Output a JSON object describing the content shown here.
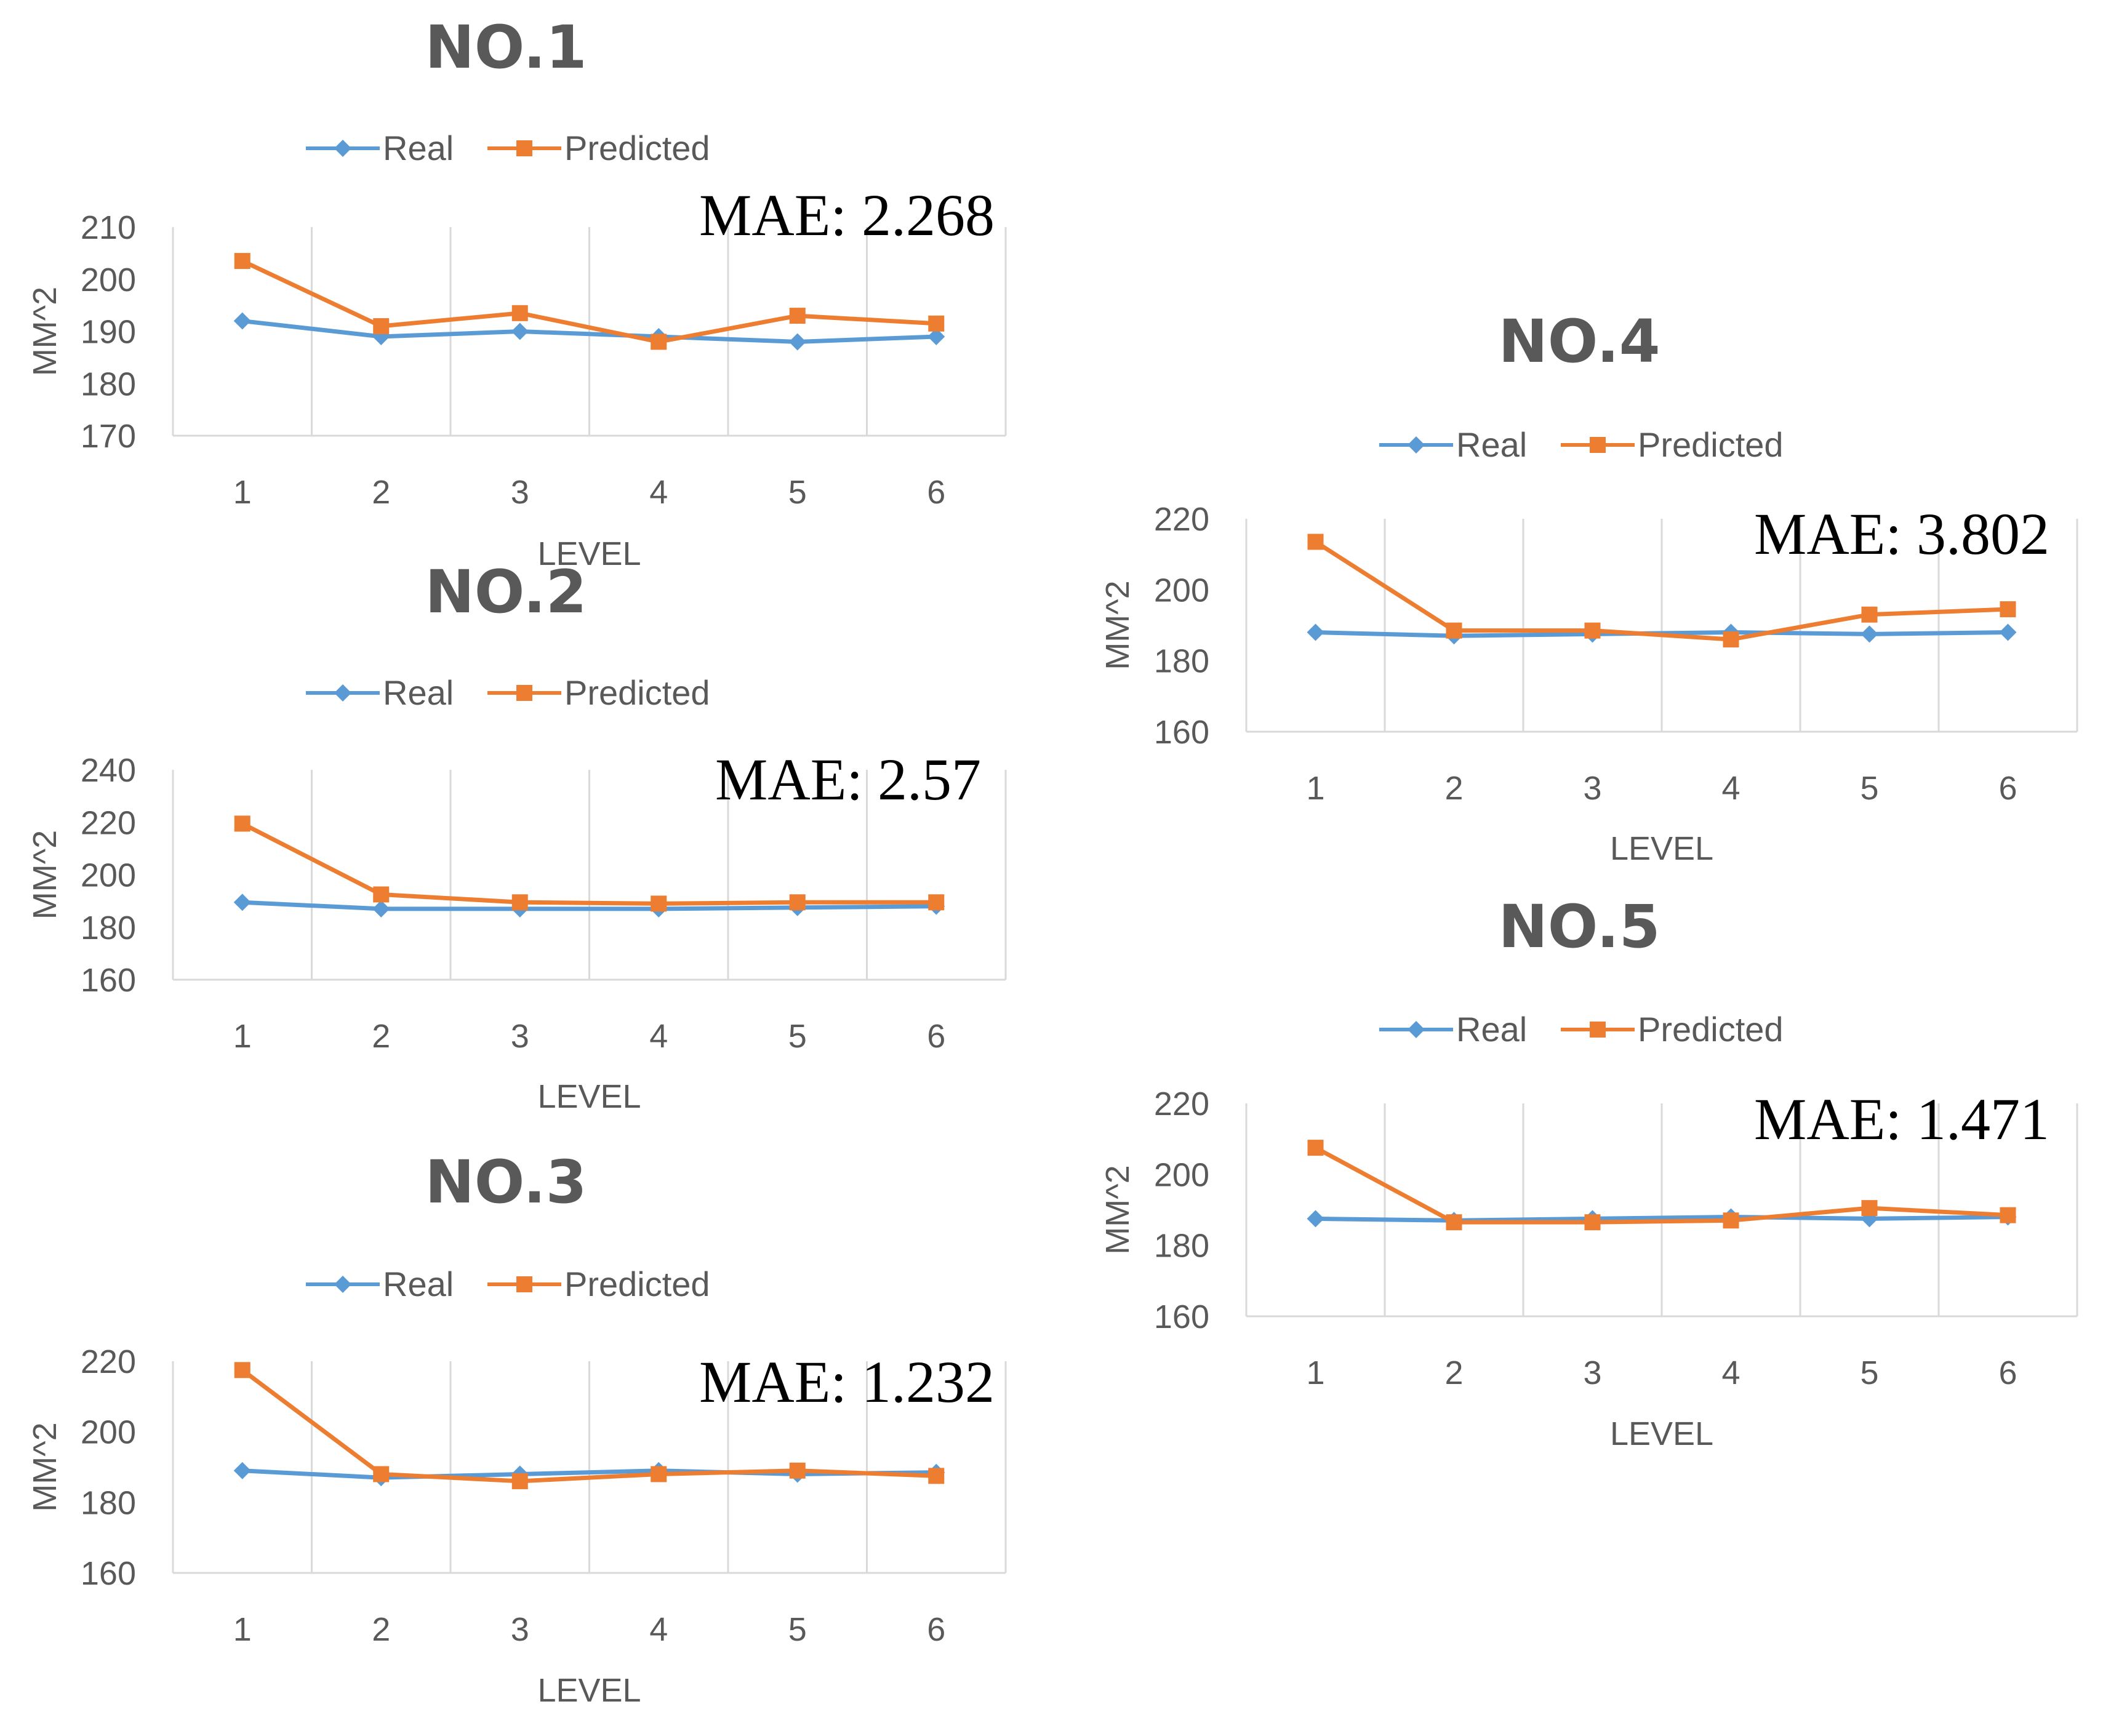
{
  "chart_data": [
    {
      "type": "line",
      "title": "NO.1",
      "categories": [
        "1",
        "2",
        "3",
        "4",
        "5",
        "6"
      ],
      "series": [
        {
          "name": "Real",
          "values": [
            192,
            189,
            190,
            189,
            188,
            189
          ],
          "color": "#5B9BD5",
          "marker": "diamond"
        },
        {
          "name": "Predicted",
          "values": [
            203.5,
            191,
            193.5,
            188,
            193,
            191.5
          ],
          "color": "#ED7D31",
          "marker": "square"
        }
      ],
      "xlabel": "LEVEL",
      "ylabel": "MM^2",
      "ylim": [
        170,
        210
      ],
      "yticks": [
        "210",
        "200",
        "190",
        "180",
        "170"
      ],
      "annotation": "MAE: 2.268",
      "legend": "top",
      "grid": "vertical"
    },
    {
      "type": "line",
      "title": "NO.2",
      "categories": [
        "1",
        "2",
        "3",
        "4",
        "5",
        "6"
      ],
      "series": [
        {
          "name": "Real",
          "values": [
            189.5,
            187,
            187,
            187,
            187.5,
            188
          ],
          "color": "#5B9BD5",
          "marker": "diamond"
        },
        {
          "name": "Predicted",
          "values": [
            219.5,
            192.5,
            189.5,
            189,
            189.5,
            189.5
          ],
          "color": "#ED7D31",
          "marker": "square"
        }
      ],
      "xlabel": "LEVEL",
      "ylabel": "MM^2",
      "ylim": [
        160,
        240
      ],
      "yticks": [
        "240",
        "220",
        "200",
        "180",
        "160"
      ],
      "annotation": "MAE: 2.57",
      "legend": "top",
      "grid": "vertical"
    },
    {
      "type": "line",
      "title": "NO.3",
      "categories": [
        "1",
        "2",
        "3",
        "4",
        "5",
        "6"
      ],
      "series": [
        {
          "name": "Real",
          "values": [
            189,
            187,
            188,
            189,
            188,
            188.5
          ],
          "color": "#5B9BD5",
          "marker": "diamond"
        },
        {
          "name": "Predicted",
          "values": [
            217.5,
            188,
            186,
            188,
            189,
            187.5
          ],
          "color": "#ED7D31",
          "marker": "square"
        }
      ],
      "xlabel": "LEVEL",
      "ylabel": "MM^2",
      "ylim": [
        160,
        220
      ],
      "yticks": [
        "220",
        "200",
        "180",
        "160"
      ],
      "annotation": "MAE: 1.232",
      "legend": "top",
      "grid": "vertical"
    },
    {
      "type": "line",
      "title": "NO.4",
      "categories": [
        "1",
        "2",
        "3",
        "4",
        "5",
        "6"
      ],
      "series": [
        {
          "name": "Real",
          "values": [
            188,
            187,
            187.5,
            188,
            187.5,
            188
          ],
          "color": "#5B9BD5",
          "marker": "diamond"
        },
        {
          "name": "Predicted",
          "values": [
            213.5,
            188.5,
            188.5,
            186,
            193,
            194.5
          ],
          "color": "#ED7D31",
          "marker": "square"
        }
      ],
      "xlabel": "LEVEL",
      "ylabel": "MM^2",
      "ylim": [
        160,
        220
      ],
      "yticks": [
        "220",
        "200",
        "180",
        "160"
      ],
      "annotation": "MAE: 3.802",
      "legend": "top",
      "grid": "vertical"
    },
    {
      "type": "line",
      "title": "NO.5",
      "categories": [
        "1",
        "2",
        "3",
        "4",
        "5",
        "6"
      ],
      "series": [
        {
          "name": "Real",
          "values": [
            187.5,
            187,
            187.5,
            188,
            187.5,
            188
          ],
          "color": "#5B9BD5",
          "marker": "diamond"
        },
        {
          "name": "Predicted",
          "values": [
            207.5,
            186.5,
            186.5,
            187,
            190.5,
            188.5
          ],
          "color": "#ED7D31",
          "marker": "square"
        }
      ],
      "xlabel": "LEVEL",
      "ylabel": "MM^2",
      "ylim": [
        160,
        220
      ],
      "yticks": [
        "220",
        "200",
        "180",
        "160"
      ],
      "annotation": "MAE: 1.471",
      "legend": "top",
      "grid": "vertical"
    }
  ]
}
